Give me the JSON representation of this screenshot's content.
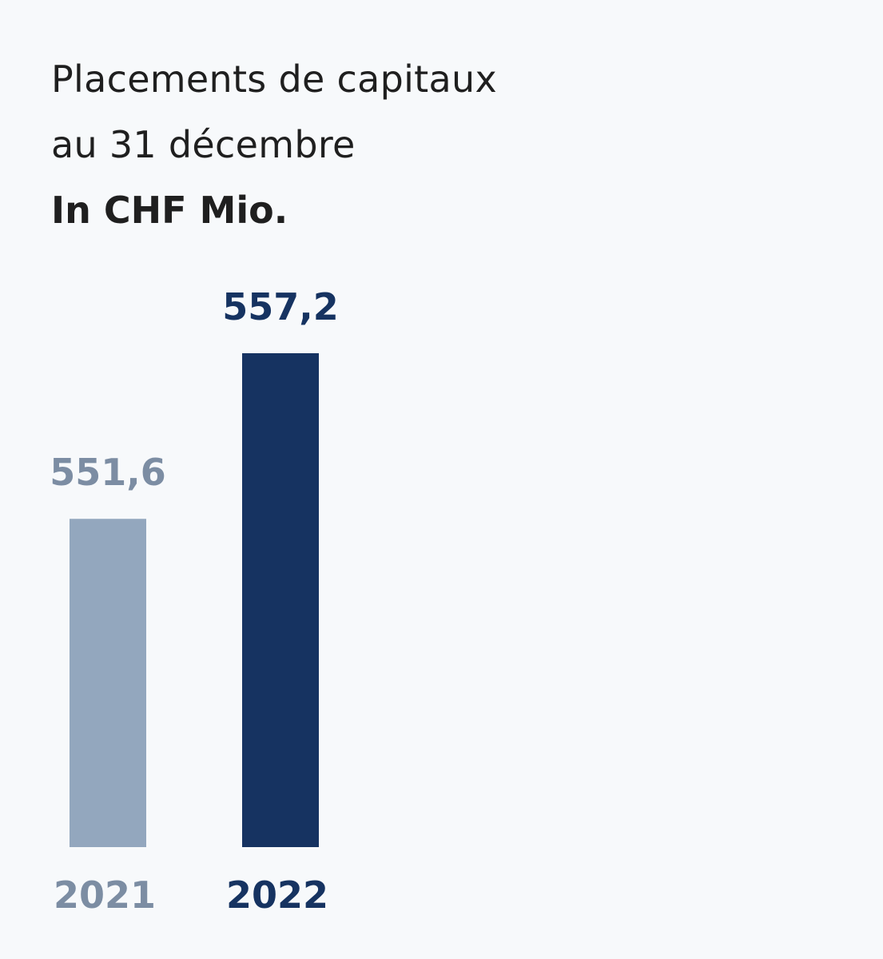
{
  "title": {
    "line1": "Placements de capitaux",
    "line2": "au 31 décembre",
    "unit": "In CHF Mio."
  },
  "chart_data": {
    "type": "bar",
    "categories": [
      "2021",
      "2022"
    ],
    "values": [
      551.6,
      557.2
    ],
    "value_labels": [
      "551,6",
      "557,2"
    ],
    "colors": [
      "#93a7be",
      "#163361"
    ],
    "label_colors": [
      "#7c8da3",
      "#163361"
    ],
    "title": "Placements de capitaux au 31 décembre",
    "ylabel": "In CHF Mio.",
    "xlabel": "",
    "grid": false,
    "legend": "none"
  }
}
